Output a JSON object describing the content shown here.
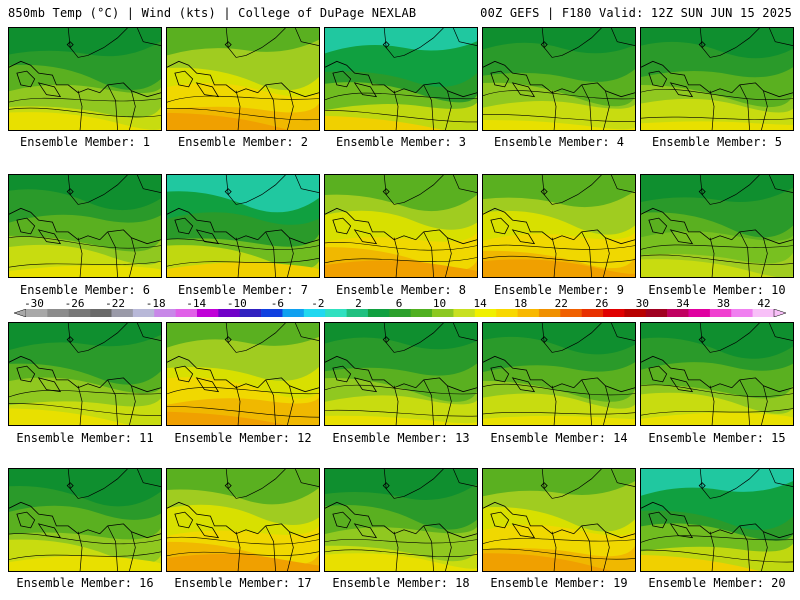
{
  "header": {
    "left": "850mb Temp (°C) | Wind (kts) | College of DuPage NEXLAB",
    "right": "00Z GEFS | F180 Valid: 12Z SUN JUN 15 2025"
  },
  "colorbar": {
    "labels": [
      "-30",
      "-26",
      "-22",
      "-18",
      "-14",
      "-10",
      "-6",
      "-2",
      "2",
      "6",
      "10",
      "14",
      "18",
      "22",
      "26",
      "30",
      "34",
      "38",
      "42"
    ],
    "colors": [
      "#a8a8a8",
      "#8c8c8c",
      "#787878",
      "#6a6a6a",
      "#9a9aa8",
      "#b8b8d8",
      "#c888e8",
      "#e060e8",
      "#c000d8",
      "#7000c8",
      "#3020c0",
      "#1040e0",
      "#10a0f0",
      "#20d8f0",
      "#30e0c0",
      "#20c080",
      "#10a040",
      "#2ca02c",
      "#50b020",
      "#8cc820",
      "#c8e020",
      "#f0f000",
      "#f8d800",
      "#f8b800",
      "#f09000",
      "#f06000",
      "#e83000",
      "#e00000",
      "#b80000",
      "#a00020",
      "#c00060",
      "#e000a0",
      "#f040d0",
      "#f080f0",
      "#f8c0f8"
    ]
  },
  "members": [
    {
      "label": "Ensemble Member: 1",
      "scheme": "g"
    },
    {
      "label": "Ensemble Member: 2",
      "scheme": "w"
    },
    {
      "label": "Ensemble Member: 3",
      "scheme": "t"
    },
    {
      "label": "Ensemble Member: 4",
      "scheme": "g"
    },
    {
      "label": "Ensemble Member: 5",
      "scheme": "g"
    },
    {
      "label": "Ensemble Member: 6",
      "scheme": "g"
    },
    {
      "label": "Ensemble Member: 7",
      "scheme": "t"
    },
    {
      "label": "Ensemble Member: 8",
      "scheme": "w"
    },
    {
      "label": "Ensemble Member: 9",
      "scheme": "w"
    },
    {
      "label": "Ensemble Member: 10",
      "scheme": "l"
    },
    {
      "label": "Ensemble Member: 11",
      "scheme": "g"
    },
    {
      "label": "Ensemble Member: 12",
      "scheme": "w"
    },
    {
      "label": "Ensemble Member: 13",
      "scheme": "g"
    },
    {
      "label": "Ensemble Member: 14",
      "scheme": "g"
    },
    {
      "label": "Ensemble Member: 15",
      "scheme": "g"
    },
    {
      "label": "Ensemble Member: 16",
      "scheme": "g"
    },
    {
      "label": "Ensemble Member: 17",
      "scheme": "w"
    },
    {
      "label": "Ensemble Member: 18",
      "scheme": "g"
    },
    {
      "label": "Ensemble Member: 19",
      "scheme": "w"
    },
    {
      "label": "Ensemble Member: 20",
      "scheme": "t"
    }
  ]
}
